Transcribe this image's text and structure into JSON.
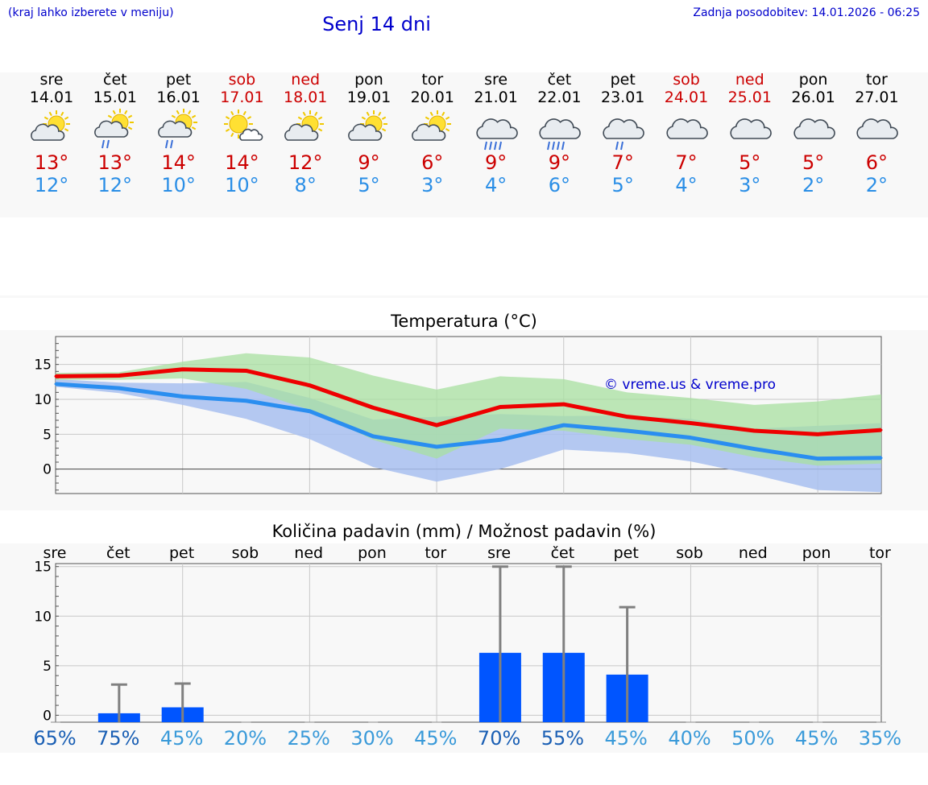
{
  "header": {
    "hint": "(kraj lahko izberete v meniju)",
    "title": "Senj 14 dni",
    "updated": "Zadnja posodobitev: 14.01.2026 - 06:25"
  },
  "days": [
    {
      "name": "sre",
      "date": "14.01",
      "weekend": false,
      "icon": "sun-cloud-icon",
      "max": "13°",
      "min": "12°"
    },
    {
      "name": "čet",
      "date": "15.01",
      "weekend": false,
      "icon": "sun-cloud-rain-icon",
      "max": "13°",
      "min": "12°"
    },
    {
      "name": "pet",
      "date": "16.01",
      "weekend": false,
      "icon": "sun-cloud-rain-icon",
      "max": "14°",
      "min": "10°"
    },
    {
      "name": "sob",
      "date": "17.01",
      "weekend": true,
      "icon": "sun-small-cloud-icon",
      "max": "14°",
      "min": "10°"
    },
    {
      "name": "ned",
      "date": "18.01",
      "weekend": true,
      "icon": "sun-cloud-icon",
      "max": "12°",
      "min": "8°"
    },
    {
      "name": "pon",
      "date": "19.01",
      "weekend": false,
      "icon": "sun-cloud-icon",
      "max": "9°",
      "min": "5°"
    },
    {
      "name": "tor",
      "date": "20.01",
      "weekend": false,
      "icon": "sun-cloud-icon",
      "max": "6°",
      "min": "3°"
    },
    {
      "name": "sre",
      "date": "21.01",
      "weekend": false,
      "icon": "cloud-heavy-rain-icon",
      "max": "9°",
      "min": "4°"
    },
    {
      "name": "čet",
      "date": "22.01",
      "weekend": false,
      "icon": "cloud-heavy-rain-icon",
      "max": "9°",
      "min": "6°"
    },
    {
      "name": "pet",
      "date": "23.01",
      "weekend": false,
      "icon": "cloud-rain-icon",
      "max": "7°",
      "min": "5°"
    },
    {
      "name": "sob",
      "date": "24.01",
      "weekend": true,
      "icon": "cloudy-icon",
      "max": "7°",
      "min": "4°"
    },
    {
      "name": "ned",
      "date": "25.01",
      "weekend": true,
      "icon": "cloudy-icon",
      "max": "5°",
      "min": "3°"
    },
    {
      "name": "pon",
      "date": "26.01",
      "weekend": false,
      "icon": "cloudy-icon",
      "max": "5°",
      "min": "2°"
    },
    {
      "name": "tor",
      "date": "27.01",
      "weekend": false,
      "icon": "cloudy-icon",
      "max": "6°",
      "min": "2°"
    }
  ],
  "colors": {
    "max": "#ee0000",
    "min": "#2a8ef0",
    "max_band": "#a8e0a0",
    "min_band": "#a8c0f0",
    "overlap_band": "#78bca0",
    "bar": "#0055ff",
    "errbar": "#808080",
    "weekend": "#cc0000"
  },
  "chart_data": [
    {
      "type": "line",
      "title": "Temperatura (°C)",
      "credit": "© vreme.us & vreme.pro",
      "categories": [
        "sre",
        "čet",
        "pet",
        "sob",
        "ned",
        "pon",
        "tor",
        "sre",
        "čet",
        "pet",
        "sob",
        "ned",
        "pon",
        "tor"
      ],
      "yticks": [
        "15",
        "10",
        "5",
        "0"
      ],
      "ylim": [
        -3.5,
        19
      ],
      "series": [
        {
          "name": "max",
          "values": [
            13.3,
            13.4,
            14.3,
            14.1,
            12,
            8.8,
            6.3,
            8.9,
            9.3,
            7.5,
            6.6,
            5.5,
            5,
            5.6
          ]
        },
        {
          "name": "min",
          "values": [
            12.2,
            11.6,
            10.4,
            9.8,
            8.3,
            4.7,
            3.2,
            4.2,
            6.3,
            5.5,
            4.5,
            2.9,
            1.5,
            1.6
          ]
        }
      ],
      "max_band": {
        "upper": [
          13.8,
          13.9,
          15.4,
          16.6,
          16,
          13.4,
          11.4,
          13.3,
          12.9,
          11,
          10.2,
          9.2,
          9.7,
          10.7
        ],
        "lower": [
          12.8,
          12.8,
          13,
          11.5,
          8.5,
          4.2,
          1.5,
          5.8,
          5.5,
          4.3,
          3.5,
          1.7,
          0.5,
          0.8
        ]
      },
      "min_band": {
        "upper": [
          12.9,
          12.4,
          12.3,
          12.5,
          10.2,
          7.1,
          7.5,
          7.9,
          7.6,
          7.7,
          7.2,
          5.8,
          6.2,
          6.6
        ]
      },
      "min_band_lower": [
        11.8,
        10.9,
        9.2,
        7.2,
        4.3,
        0.3,
        -1.8,
        0,
        2.8,
        2.3,
        1.1,
        -0.8,
        -3,
        -3.3
      ]
    },
    {
      "type": "bar",
      "title": "Količina padavin (mm) / Možnost padavin (%)",
      "categories": [
        "sre",
        "čet",
        "pet",
        "sob",
        "ned",
        "pon",
        "tor",
        "sre",
        "čet",
        "pet",
        "sob",
        "ned",
        "pon",
        "tor"
      ],
      "yticks": [
        "15",
        "10",
        "5",
        "0"
      ],
      "ylim": [
        -0.7,
        15.3
      ],
      "values": [
        0,
        0.2,
        0.8,
        0,
        0,
        0,
        0,
        6.3,
        6.3,
        4.1,
        0,
        0,
        0,
        0
      ],
      "errbar_max": [
        0,
        3.1,
        3.2,
        0,
        0,
        0,
        0,
        15,
        15,
        10.9,
        0,
        0,
        0,
        0
      ],
      "probability": [
        "65%",
        "75%",
        "45%",
        "20%",
        "25%",
        "30%",
        "45%",
        "70%",
        "55%",
        "45%",
        "40%",
        "50%",
        "45%",
        "35%"
      ],
      "probability_values": [
        65,
        75,
        45,
        20,
        25,
        30,
        45,
        70,
        55,
        45,
        40,
        50,
        45,
        35
      ]
    }
  ]
}
